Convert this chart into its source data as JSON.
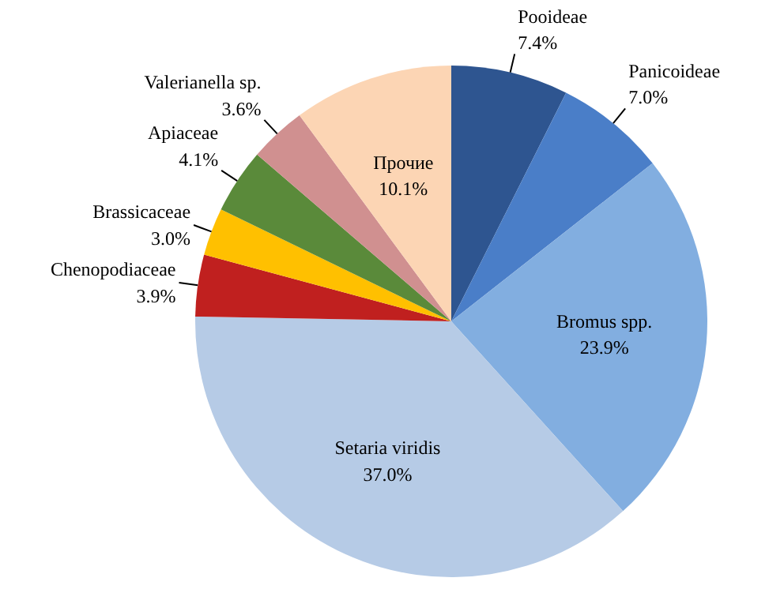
{
  "chart_data": {
    "type": "pie",
    "categories": [
      "Pooideae",
      "Panicoideae",
      "Bromus spp.",
      "Setaria viridis",
      "Chenopodiaceae",
      "Brassicaceae",
      "Apiaceae",
      "Valerianella sp.",
      "Прочие"
    ],
    "values": [
      7.4,
      7.0,
      23.9,
      37.0,
      3.9,
      3.0,
      4.1,
      3.6,
      10.1
    ],
    "value_labels": [
      "7.4%",
      "7.0%",
      "23.9%",
      "37.0%",
      "3.9%",
      "3.0%",
      "4.1%",
      "3.6%",
      "10.1%"
    ],
    "colors": [
      "#2e5590",
      "#4a7ec8",
      "#82aee0",
      "#b6cbe6",
      "#c0201f",
      "#ffc000",
      "#5a8a3a",
      "#d09090",
      "#fcd5b4"
    ]
  }
}
